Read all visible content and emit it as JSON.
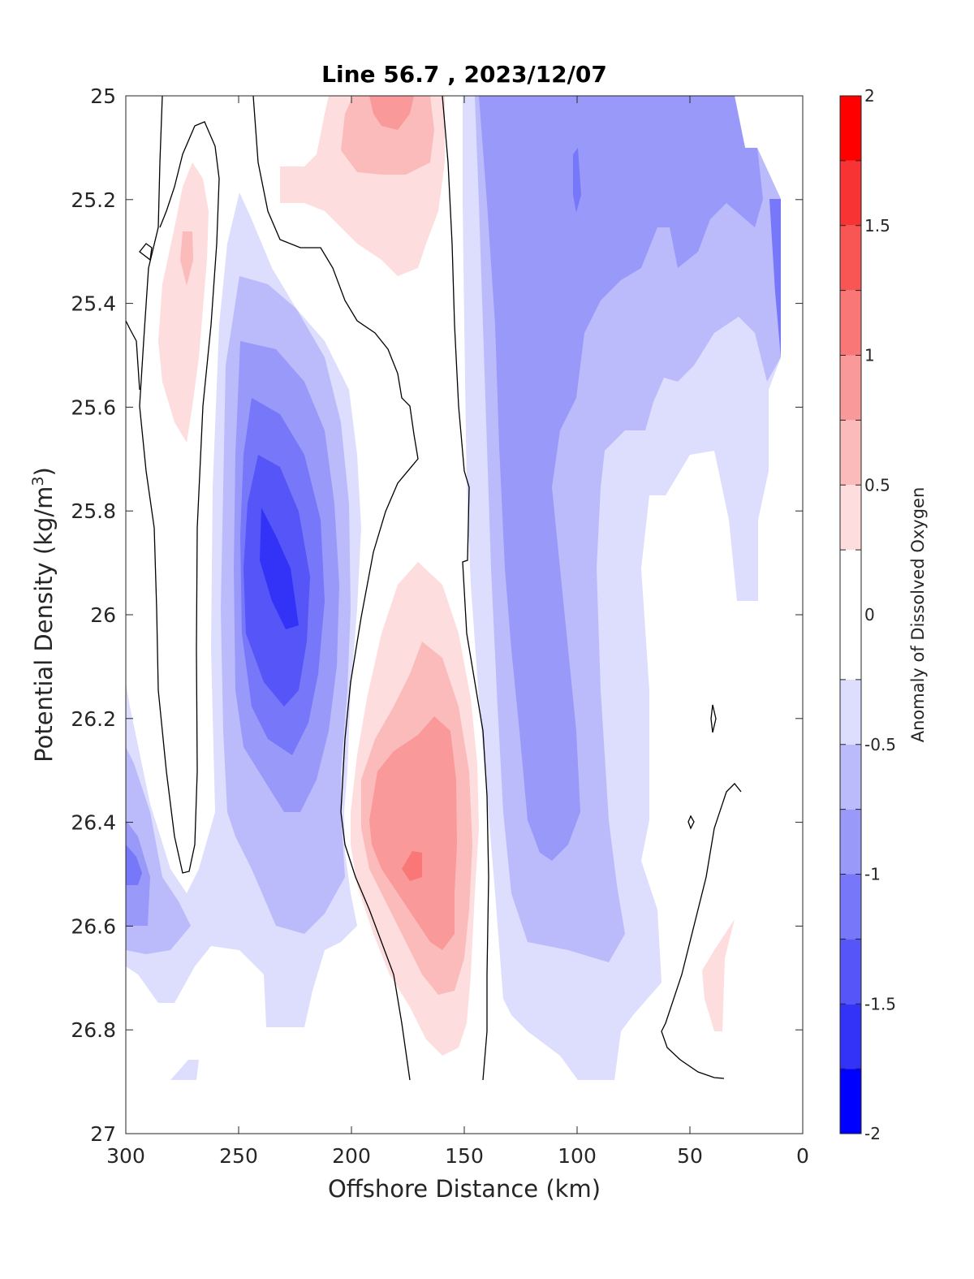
{
  "chart_data": {
    "type": "contourf",
    "title": "Line 56.7 , 2023/12/07",
    "xlabel": "Offshore Distance (km)",
    "ylabel_main": "Potential Density (kg/m",
    "ylabel_sup": "3",
    "ylabel_close": ")",
    "colorbar_label": "Anomaly of Dissolved Oxygen",
    "xlim": [
      300,
      0
    ],
    "ylim": [
      25,
      27
    ],
    "x_ticks": [
      "300",
      "250",
      "200",
      "150",
      "100",
      "50",
      "0"
    ],
    "y_ticks": [
      "25",
      "25.2",
      "25.4",
      "25.6",
      "25.8",
      "26",
      "26.2",
      "26.4",
      "26.6",
      "26.8",
      "27"
    ],
    "colorbar_ticks": [
      "2",
      "1.5",
      "1",
      "0.5",
      "0",
      "-0.5",
      "-1",
      "-1.5",
      "-2"
    ],
    "colorbar_range": [
      -2,
      2
    ],
    "levels": [
      -2,
      -1.75,
      -1.5,
      -1.25,
      -1,
      -0.75,
      -0.5,
      -0.25,
      0.25,
      0.5,
      0.75,
      1,
      1.25,
      1.5,
      1.75,
      2
    ],
    "features": [
      {
        "name": "negative core",
        "center_km": 230,
        "center_density": 25.9,
        "min_anomaly": -1.5
      },
      {
        "name": "positive core (deep)",
        "center_km": 168,
        "center_density": 26.45,
        "max_anomaly": 1.25
      },
      {
        "name": "positive patch (shallow)",
        "center_km": 182,
        "center_density": 25.05,
        "max_anomaly": 1.0
      },
      {
        "name": "nearshore negative band",
        "center_km": 100,
        "center_density": 25.3,
        "min_anomaly": -1.0
      }
    ]
  },
  "colors": {
    "pos": [
      "#fddddd",
      "#fbbbbb",
      "#fa9999",
      "#f97777",
      "#f85555",
      "#f73333",
      "#ff0000"
    ],
    "neg": [
      "#ddddfd",
      "#bbbbfb",
      "#9999fa",
      "#7777f9",
      "#5555f8",
      "#3333f7",
      "#0000ff"
    ]
  }
}
